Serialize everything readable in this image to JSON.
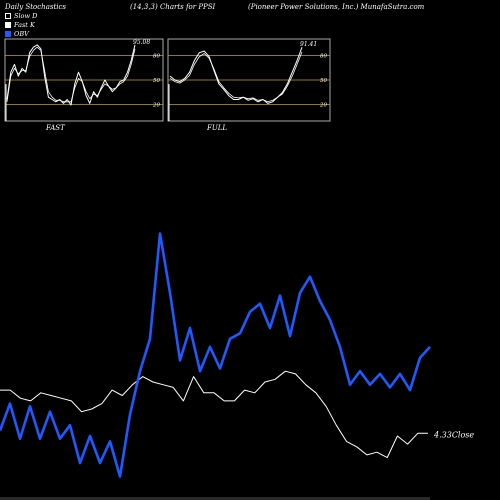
{
  "header": {
    "left": "Daily Stochastics",
    "mid": "(14,3,3) Charts for PPSI",
    "right": "(Pioneer Power Solutions, Inc.) MunafaSutra.com"
  },
  "legend": [
    {
      "label": "Slow D",
      "color": "#ffffff",
      "style": "outline"
    },
    {
      "label": "Fast K",
      "color": "#ffffff",
      "style": "fill"
    },
    {
      "label": "OBV",
      "color": "#1e5bff",
      "style": "fill"
    }
  ],
  "chart_data": [
    {
      "type": "line",
      "title": "FAST",
      "ylim": [
        0,
        100
      ],
      "gridlines": [
        20,
        50,
        80
      ],
      "ticks": [
        "80",
        "50",
        "20"
      ],
      "last_value_label": "95.08",
      "series": [
        {
          "values": [
            25,
            60,
            70,
            55,
            65,
            60,
            85,
            92,
            95,
            90,
            55,
            28,
            25,
            22,
            25,
            20,
            25,
            18,
            45,
            60,
            48,
            30,
            20,
            35,
            28,
            40,
            50,
            42,
            35,
            40,
            48,
            50,
            60,
            75,
            95
          ]
        },
        {
          "values": [
            22,
            55,
            65,
            58,
            62,
            62,
            80,
            88,
            92,
            88,
            62,
            35,
            28,
            24,
            24,
            22,
            22,
            22,
            40,
            52,
            48,
            35,
            26,
            32,
            30,
            38,
            45,
            42,
            38,
            40,
            45,
            48,
            55,
            70,
            90
          ]
        }
      ]
    },
    {
      "type": "line",
      "title": "FULL",
      "ylim": [
        0,
        100
      ],
      "gridlines": [
        20,
        50,
        80
      ],
      "ticks": [
        "80",
        "50",
        "20"
      ],
      "last_value_label": "91.41",
      "series": [
        {
          "values": [
            55,
            50,
            48,
            52,
            60,
            75,
            85,
            87,
            80,
            62,
            45,
            38,
            30,
            25,
            25,
            28,
            24,
            26,
            22,
            25,
            20,
            22,
            28,
            34,
            45,
            60,
            75,
            92
          ]
        },
        {
          "values": [
            52,
            48,
            46,
            50,
            56,
            70,
            80,
            84,
            78,
            64,
            48,
            40,
            33,
            28,
            27,
            28,
            26,
            27,
            24,
            25,
            22,
            24,
            28,
            32,
            42,
            55,
            70,
            86
          ]
        }
      ]
    },
    {
      "type": "line",
      "ylim": [
        0,
        100
      ],
      "last_value_label": "4.33Close",
      "series": [
        {
          "color": "#1e5bff",
          "values": [
            22,
            32,
            19,
            31,
            19,
            29,
            19,
            24,
            10,
            20,
            10,
            18,
            5,
            28,
            44,
            56,
            95,
            73,
            48,
            60,
            44,
            53,
            45,
            56,
            58,
            66,
            69,
            60,
            72,
            57,
            73,
            79,
            70,
            63,
            53,
            39,
            44,
            39,
            43,
            38,
            43,
            37,
            49,
            53
          ]
        },
        {
          "color": "#ffffff",
          "values": [
            37,
            37,
            34,
            33,
            36,
            35,
            34,
            33,
            29,
            30,
            32,
            37,
            35,
            39,
            42,
            40,
            39,
            38,
            33,
            42,
            36,
            36,
            33,
            33,
            37,
            36,
            40,
            41,
            44,
            43,
            39,
            36,
            31,
            24,
            18,
            16,
            13,
            14,
            12,
            20,
            17,
            21,
            21
          ]
        }
      ]
    }
  ]
}
